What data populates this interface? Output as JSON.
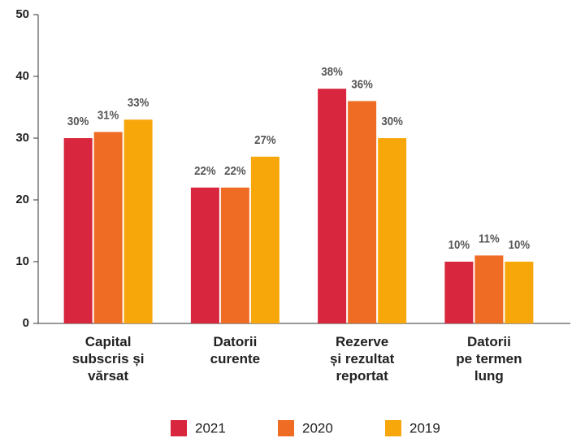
{
  "chart_data": {
    "type": "bar",
    "categories": [
      "Capital\nsubscris și\nvărsat",
      "Datorii\ncurente",
      "Rezerve\nși rezultat\nreportat",
      "Datorii\npe termen\nlung"
    ],
    "series": [
      {
        "name": "2021",
        "color": "#d7263d",
        "values": [
          30,
          22,
          38,
          10
        ],
        "value_labels": [
          "30%",
          "22%",
          "38%",
          "10%"
        ]
      },
      {
        "name": "2020",
        "color": "#ee6c24",
        "values": [
          31,
          22,
          36,
          11
        ],
        "value_labels": [
          "31%",
          "22%",
          "36%",
          "11%"
        ]
      },
      {
        "name": "2019",
        "color": "#f7a70a",
        "values": [
          33,
          27,
          30,
          10
        ],
        "value_labels": [
          "33%",
          "27%",
          "30%",
          "10%"
        ]
      }
    ],
    "ylim": [
      0,
      50
    ],
    "yticks": [
      0,
      10,
      20,
      30,
      40,
      50
    ],
    "grid": false,
    "legend": "bottom"
  }
}
